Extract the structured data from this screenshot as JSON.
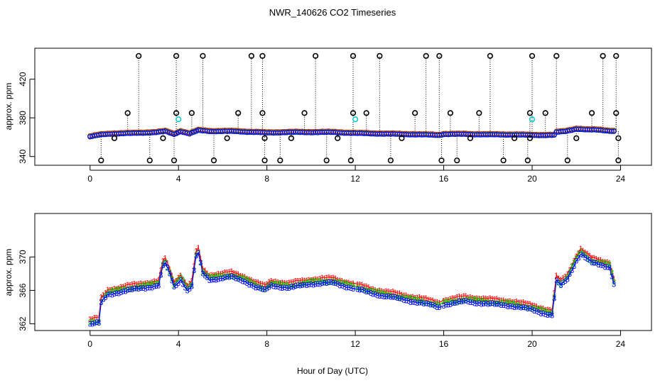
{
  "chart_data": [
    {
      "type": "scatter",
      "title": "NWR_140626  CO2 Timeseries",
      "xlabel": "Hour of Day (UTC)",
      "ylabel": "approx. ppm",
      "xlim": [
        -2.5,
        25.4
      ],
      "ylim": [
        331,
        452
      ],
      "xticks": [
        0,
        4,
        8,
        12,
        16,
        20,
        24
      ],
      "xtick_labels": [
        "0",
        "4",
        "8",
        "12",
        "16",
        "20",
        "24"
      ],
      "yticks": [
        340,
        380,
        420
      ],
      "ytick_labels": [
        "340",
        "380",
        "420"
      ],
      "colors": {
        "series1": "#ff0000",
        "series2": "#00cc00",
        "series3": "#0000ff",
        "outlier": "#000000",
        "flagged": "#00cccc"
      },
      "baseline": [
        [
          0.0,
          360.5
        ],
        [
          0.5,
          362.5
        ],
        [
          1.0,
          363.5
        ],
        [
          2.0,
          364.0
        ],
        [
          3.0,
          365.0
        ],
        [
          3.4,
          366.0
        ],
        [
          3.8,
          363.0
        ],
        [
          4.1,
          366.0
        ],
        [
          4.5,
          363.5
        ],
        [
          4.9,
          367.0
        ],
        [
          5.5,
          366.0
        ],
        [
          6.5,
          366.0
        ],
        [
          7.5,
          365.0
        ],
        [
          8.0,
          364.5
        ],
        [
          9.0,
          365.0
        ],
        [
          10.0,
          365.0
        ],
        [
          11.0,
          365.0
        ],
        [
          12.0,
          364.0
        ],
        [
          13.0,
          363.5
        ],
        [
          14.0,
          363.0
        ],
        [
          15.0,
          362.5
        ],
        [
          15.8,
          362.0
        ],
        [
          16.0,
          363.0
        ],
        [
          17.0,
          363.0
        ],
        [
          18.0,
          362.5
        ],
        [
          19.0,
          362.5
        ],
        [
          20.0,
          362.0
        ],
        [
          21.0,
          362.0
        ],
        [
          21.1,
          365.0
        ],
        [
          21.5,
          366.0
        ],
        [
          22.0,
          368.5
        ],
        [
          22.5,
          367.5
        ],
        [
          23.0,
          367.5
        ],
        [
          23.7,
          366.0
        ]
      ],
      "outliers_high": [
        2.2,
        3.9,
        5.1,
        7.3,
        7.8,
        10.2,
        11.9,
        13.1,
        15.2,
        15.8,
        18.1,
        20.0,
        21.1,
        23.2,
        23.8
      ],
      "outliers_mid": [
        1.7,
        3.9,
        4.6,
        6.7,
        7.8,
        9.7,
        11.9,
        12.5,
        14.7,
        16.3,
        17.6,
        19.9,
        20.6,
        22.7,
        23.8
      ],
      "outliers_low": [
        0.5,
        2.7,
        3.8,
        5.6,
        7.9,
        8.6,
        10.7,
        11.8,
        13.6,
        15.9,
        16.6,
        18.7,
        19.8,
        21.6,
        23.9
      ],
      "outliers_near": [
        1.1,
        3.3,
        6.2,
        7.9,
        9.1,
        11.2,
        14.1,
        17.2,
        19.2,
        19.9,
        22.0,
        23.9
      ],
      "flagged": [
        [
          4.0,
          378.5
        ],
        [
          12.0,
          378.5
        ],
        [
          20.0,
          378.5
        ]
      ]
    },
    {
      "type": "scatter",
      "title": "",
      "xlabel": "Hour of Day (UTC)",
      "ylabel": "approx. ppm",
      "xlim": [
        -2.5,
        25.4
      ],
      "ylim": [
        361.2,
        375.2
      ],
      "xticks": [
        0,
        4,
        8,
        12,
        16,
        20,
        24
      ],
      "xtick_labels": [
        "0",
        "4",
        "8",
        "12",
        "16",
        "20",
        "24"
      ],
      "yticks": [
        362,
        366,
        370
      ],
      "ytick_labels": [
        "362",
        "366",
        "370"
      ],
      "series": [
        {
          "name": "1",
          "color": "#ff0000",
          "marker": "1",
          "offset": 0.6
        },
        {
          "name": "2",
          "color": "#00cc00",
          "marker": "2",
          "offset": 0.25
        },
        {
          "name": "3",
          "color": "#0000ff",
          "marker": "3",
          "offset": 0.0
        }
      ],
      "baseline": [
        [
          0.0,
          362.0
        ],
        [
          0.4,
          362.1
        ],
        [
          0.5,
          364.5
        ],
        [
          0.8,
          365.5
        ],
        [
          1.5,
          365.9
        ],
        [
          2.4,
          366.3
        ],
        [
          3.1,
          366.6
        ],
        [
          3.35,
          369.5
        ],
        [
          3.6,
          368.0
        ],
        [
          3.8,
          366.4
        ],
        [
          4.1,
          367.3
        ],
        [
          4.4,
          366.0
        ],
        [
          4.6,
          366.5
        ],
        [
          4.85,
          371.0
        ],
        [
          5.1,
          368.0
        ],
        [
          5.4,
          367.3
        ],
        [
          6.4,
          367.6
        ],
        [
          7.0,
          367.1
        ],
        [
          7.5,
          366.4
        ],
        [
          7.9,
          366.0
        ],
        [
          8.2,
          366.6
        ],
        [
          9.0,
          366.3
        ],
        [
          10.0,
          366.8
        ],
        [
          11.0,
          366.9
        ],
        [
          12.0,
          366.2
        ],
        [
          13.0,
          365.5
        ],
        [
          14.0,
          365.0
        ],
        [
          15.0,
          364.5
        ],
        [
          15.8,
          364.0
        ],
        [
          16.0,
          364.3
        ],
        [
          17.0,
          364.7
        ],
        [
          18.0,
          364.4
        ],
        [
          19.0,
          364.2
        ],
        [
          20.0,
          363.7
        ],
        [
          20.9,
          363.0
        ],
        [
          21.1,
          367.1
        ],
        [
          21.3,
          366.6
        ],
        [
          21.6,
          367.4
        ],
        [
          22.0,
          369.6
        ],
        [
          22.2,
          370.4
        ],
        [
          22.7,
          369.3
        ],
        [
          23.5,
          368.8
        ],
        [
          23.7,
          366.8
        ]
      ]
    }
  ]
}
